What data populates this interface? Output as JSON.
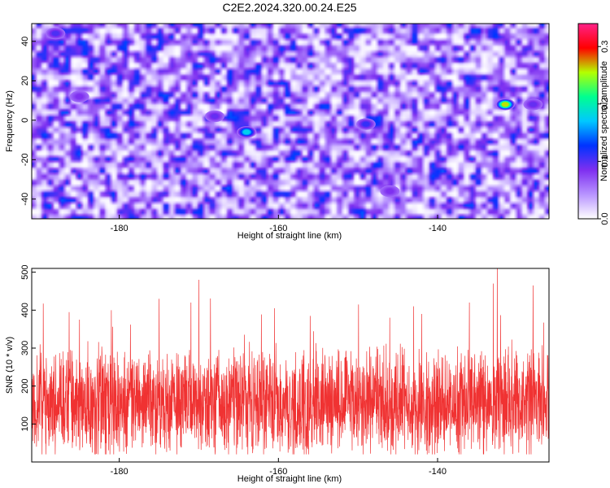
{
  "title": "C2E2.2024.320.00.24.E25",
  "colors": {
    "signal_line": "#f03232",
    "colormap": [
      "#ffffff",
      "#b894ff",
      "#7e2ff0",
      "#0033ff",
      "#00c8ff",
      "#00ff90",
      "#b4ff00",
      "#ff0000",
      "#ff2288"
    ]
  },
  "chart_data": [
    {
      "type": "heatmap",
      "title": "C2E2.2024.320.00.24.E25",
      "xlabel": "Height of straight line (km)",
      "ylabel": "Frequency (Hz)",
      "xlim": [
        -191,
        -126
      ],
      "ylim": [
        -50,
        49
      ],
      "x_ticks": [
        "-180",
        "-160",
        "-140"
      ],
      "x_tick_values": [
        -180,
        -160,
        -140
      ],
      "y_ticks": [
        "40",
        "20",
        "0",
        "-20",
        "-40"
      ],
      "y_tick_values": [
        40,
        20,
        0,
        -20,
        -40
      ],
      "colorbar": {
        "label": "Normalized spectral amplitude",
        "range": [
          0,
          0.34
        ],
        "ticks": [
          "0.0",
          "0.1",
          "0.2",
          "0.3"
        ],
        "tick_values": [
          0.0,
          0.1,
          0.2,
          0.3
        ]
      },
      "peaks": [
        {
          "x": -131.5,
          "y": 8,
          "value": 0.3
        },
        {
          "x": -164,
          "y": -6,
          "value": 0.2
        },
        {
          "x": -149,
          "y": -2,
          "value": 0.12
        },
        {
          "x": -188,
          "y": 44,
          "value": 0.11
        },
        {
          "x": -168,
          "y": 2,
          "value": 0.1
        },
        {
          "x": -185,
          "y": 12,
          "value": 0.09
        },
        {
          "x": -146,
          "y": -36,
          "value": 0.09
        },
        {
          "x": -128,
          "y": 8,
          "value": 0.1
        }
      ]
    },
    {
      "type": "line",
      "xlabel": "Height of straight line (km)",
      "ylabel": "SNR (10 * v/v)",
      "xlim": [
        -191,
        -126
      ],
      "ylim": [
        0,
        510
      ],
      "x_ticks": [
        "-180",
        "-160",
        "-140"
      ],
      "x_tick_values": [
        -180,
        -160,
        -140
      ],
      "y_ticks": [
        "100",
        "200",
        "300",
        "400",
        "500"
      ],
      "y_tick_values": [
        100,
        200,
        300,
        400,
        500
      ],
      "series": [
        {
          "mean": 155,
          "noise_min": 20,
          "spikes": [
            {
              "x": -170,
              "y": 480
            },
            {
              "x": -132.5,
              "y": 510
            },
            {
              "x": -133,
              "y": 470
            },
            {
              "x": -128,
              "y": 465
            },
            {
              "x": -181,
              "y": 400
            },
            {
              "x": -171,
              "y": 420
            },
            {
              "x": -175,
              "y": 430
            },
            {
              "x": -160.5,
              "y": 405
            },
            {
              "x": -143,
              "y": 410
            },
            {
              "x": -136,
              "y": 420
            },
            {
              "x": -142,
              "y": 390
            },
            {
              "x": -185,
              "y": 375
            },
            {
              "x": -156,
              "y": 385
            },
            {
              "x": -146,
              "y": 380
            }
          ]
        }
      ]
    }
  ]
}
